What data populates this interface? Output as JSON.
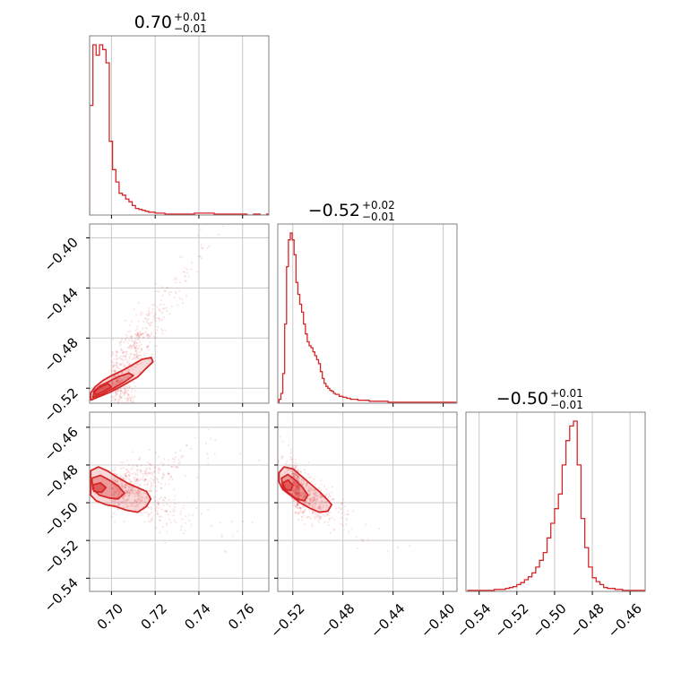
{
  "colors": {
    "accent": "#d62728",
    "grid": "#c8c8c8",
    "frame": "#808080",
    "background": "#ffffff"
  },
  "chart_data": {
    "type": "corner",
    "grid": true,
    "params": [
      {
        "range": [
          0.69,
          0.772
        ],
        "ticks": [
          {
            "v": 0.7,
            "label": "0.70"
          },
          {
            "v": 0.72,
            "label": "0.72"
          },
          {
            "v": 0.74,
            "label": "0.74"
          },
          {
            "v": 0.76,
            "label": "0.76"
          }
        ]
      },
      {
        "range": [
          -0.532,
          -0.389
        ],
        "ticks": [
          {
            "v": -0.52,
            "label": "−0.52"
          },
          {
            "v": -0.48,
            "label": "−0.48"
          },
          {
            "v": -0.44,
            "label": "−0.44"
          },
          {
            "v": -0.4,
            "label": "−0.40"
          }
        ]
      },
      {
        "range": [
          -0.547,
          -0.452
        ],
        "ticks": [
          {
            "v": -0.54,
            "label": "−0.54"
          },
          {
            "v": -0.52,
            "label": "−0.52"
          },
          {
            "v": -0.5,
            "label": "−0.50"
          },
          {
            "v": -0.48,
            "label": "−0.48"
          },
          {
            "v": -0.46,
            "label": "−0.46"
          }
        ]
      }
    ],
    "titles": [
      {
        "main": "0.70",
        "sup": "+0.01",
        "sub": "−0.01"
      },
      {
        "main": "−0.52",
        "sup": "+0.02",
        "sub": "−0.01"
      },
      {
        "main": "−0.50",
        "sup": "+0.01",
        "sub": "−0.01"
      }
    ],
    "histograms": [
      {
        "x": [
          0.69,
          0.6915,
          0.693,
          0.6945,
          0.696,
          0.6975,
          0.699,
          0.7005,
          0.702,
          0.7035,
          0.705,
          0.7065,
          0.708,
          0.7095,
          0.711,
          0.7125,
          0.714,
          0.7155,
          0.717,
          0.7185,
          0.72,
          0.7215,
          0.723,
          0.7245,
          0.726,
          0.7275,
          0.729,
          0.7305,
          0.732,
          0.7335,
          0.735,
          0.738,
          0.741,
          0.744,
          0.747,
          0.75,
          0.753,
          0.756,
          0.759,
          0.762,
          0.765,
          0.768,
          0.771
        ],
        "counts": [
          116,
          180,
          169,
          180,
          175,
          161,
          78,
          48,
          35,
          23,
          21,
          17,
          14,
          10,
          7,
          6,
          5,
          4,
          3,
          3,
          2,
          2,
          2,
          1,
          1,
          1,
          1,
          1,
          1,
          1,
          1,
          2,
          2,
          2,
          1,
          1,
          1,
          1,
          1,
          0,
          1,
          0,
          1
        ]
      },
      {
        "x": [
          -0.531,
          -0.5295,
          -0.528,
          -0.5265,
          -0.525,
          -0.5235,
          -0.522,
          -0.5205,
          -0.519,
          -0.5175,
          -0.516,
          -0.5145,
          -0.513,
          -0.5115,
          -0.51,
          -0.5085,
          -0.507,
          -0.5055,
          -0.504,
          -0.5025,
          -0.501,
          -0.4995,
          -0.498,
          -0.4965,
          -0.495,
          -0.4935,
          -0.492,
          -0.4905,
          -0.489,
          -0.4875,
          -0.486,
          -0.483,
          -0.48,
          -0.477,
          -0.474,
          -0.471,
          -0.468,
          -0.465,
          -0.462,
          -0.459,
          -0.456,
          -0.453,
          -0.45,
          -0.447,
          -0.444,
          -0.441,
          -0.438,
          -0.435,
          -0.432,
          -0.429,
          -0.426,
          -0.423,
          -0.42,
          -0.417,
          -0.414,
          -0.411,
          -0.408,
          -0.405,
          -0.402,
          -0.399,
          -0.396,
          -0.393
        ],
        "counts": [
          4,
          10,
          30,
          80,
          138,
          165,
          172,
          165,
          150,
          122,
          110,
          100,
          92,
          80,
          70,
          62,
          58,
          56,
          52,
          48,
          44,
          40,
          32,
          25,
          20,
          17,
          15,
          13,
          12,
          10,
          9,
          7,
          6,
          5,
          4,
          4,
          3,
          3,
          3,
          2,
          2,
          2,
          2,
          2,
          1,
          1,
          1,
          1,
          1,
          1,
          1,
          1,
          1,
          1,
          1,
          1,
          1,
          1,
          1,
          1,
          1,
          1
        ]
      },
      {
        "x": [
          -0.546,
          -0.544,
          -0.542,
          -0.54,
          -0.538,
          -0.536,
          -0.534,
          -0.532,
          -0.53,
          -0.528,
          -0.526,
          -0.524,
          -0.522,
          -0.52,
          -0.518,
          -0.516,
          -0.514,
          -0.512,
          -0.51,
          -0.508,
          -0.506,
          -0.504,
          -0.502,
          -0.5,
          -0.498,
          -0.496,
          -0.494,
          -0.492,
          -0.49,
          -0.488,
          -0.486,
          -0.484,
          -0.482,
          -0.48,
          -0.478,
          -0.476,
          -0.474,
          -0.472,
          -0.47,
          -0.468,
          -0.466,
          -0.464,
          -0.462,
          -0.46,
          -0.458,
          -0.456,
          -0.454
        ],
        "counts": [
          1,
          1,
          1,
          1,
          1,
          1,
          1,
          2,
          2,
          2,
          3,
          4,
          5,
          7,
          9,
          12,
          15,
          19,
          25,
          32,
          40,
          55,
          70,
          85,
          100,
          130,
          155,
          170,
          175,
          130,
          75,
          45,
          25,
          14,
          10,
          7,
          4,
          3,
          3,
          2,
          2,
          1,
          1,
          1,
          1,
          1,
          1
        ]
      }
    ],
    "pairs": [
      {
        "i": 1,
        "j": 0,
        "contours": [
          [
            [
              0.6905,
              -0.5295
            ],
            [
              0.694,
              -0.527
            ],
            [
              0.699,
              -0.5235
            ],
            [
              0.704,
              -0.519
            ],
            [
              0.708,
              -0.515
            ],
            [
              0.712,
              -0.511
            ],
            [
              0.716,
              -0.504
            ],
            [
              0.719,
              -0.499
            ],
            [
              0.7182,
              -0.4955
            ],
            [
              0.714,
              -0.497
            ],
            [
              0.71,
              -0.501
            ],
            [
              0.705,
              -0.506
            ],
            [
              0.7,
              -0.51
            ],
            [
              0.696,
              -0.514
            ],
            [
              0.6925,
              -0.519
            ],
            [
              0.6905,
              -0.524
            ]
          ],
          [
            [
              0.6915,
              -0.5275
            ],
            [
              0.696,
              -0.5245
            ],
            [
              0.701,
              -0.52
            ],
            [
              0.706,
              -0.515
            ],
            [
              0.71,
              -0.51
            ],
            [
              0.708,
              -0.508
            ],
            [
              0.703,
              -0.511
            ],
            [
              0.6985,
              -0.515
            ],
            [
              0.6945,
              -0.5185
            ],
            [
              0.692,
              -0.5225
            ]
          ],
          [
            [
              0.6925,
              -0.5255
            ],
            [
              0.6965,
              -0.5225
            ],
            [
              0.7,
              -0.519
            ],
            [
              0.6985,
              -0.5165
            ],
            [
              0.695,
              -0.519
            ],
            [
              0.6925,
              -0.5225
            ]
          ]
        ],
        "scatter": {
          "n": 900,
          "center": [
            0.7,
            -0.515
          ],
          "spread": [
            0.014,
            0.022
          ],
          "slope": 1.6
        }
      },
      {
        "i": 2,
        "j": 0,
        "contours": [
          [
            [
              0.6905,
              -0.483
            ],
            [
              0.694,
              -0.481
            ],
            [
              0.698,
              -0.483
            ],
            [
              0.702,
              -0.486
            ],
            [
              0.705,
              -0.488
            ],
            [
              0.708,
              -0.49
            ],
            [
              0.712,
              -0.492
            ],
            [
              0.716,
              -0.494
            ],
            [
              0.718,
              -0.498
            ],
            [
              0.716,
              -0.502
            ],
            [
              0.712,
              -0.505
            ],
            [
              0.707,
              -0.504
            ],
            [
              0.702,
              -0.502
            ],
            [
              0.6975,
              -0.501
            ],
            [
              0.693,
              -0.499
            ],
            [
              0.6905,
              -0.496
            ]
          ],
          [
            [
              0.691,
              -0.487
            ],
            [
              0.695,
              -0.4855
            ],
            [
              0.699,
              -0.488
            ],
            [
              0.703,
              -0.491
            ],
            [
              0.706,
              -0.495
            ],
            [
              0.703,
              -0.498
            ],
            [
              0.699,
              -0.4975
            ],
            [
              0.6945,
              -0.496
            ],
            [
              0.6915,
              -0.493
            ]
          ],
          [
            [
              0.6915,
              -0.4905
            ],
            [
              0.695,
              -0.4895
            ],
            [
              0.6975,
              -0.492
            ],
            [
              0.6955,
              -0.4945
            ],
            [
              0.692,
              -0.494
            ]
          ]
        ],
        "scatter": {
          "n": 600,
          "center": [
            0.7,
            -0.493
          ],
          "spread": [
            0.016,
            0.012
          ],
          "slope": -0.4
        }
      },
      {
        "i": 2,
        "j": 1,
        "contours": [
          [
            [
              -0.531,
              -0.484
            ],
            [
              -0.527,
              -0.481
            ],
            [
              -0.52,
              -0.482
            ],
            [
              -0.513,
              -0.486
            ],
            [
              -0.506,
              -0.49
            ],
            [
              -0.499,
              -0.494
            ],
            [
              -0.493,
              -0.498
            ],
            [
              -0.489,
              -0.501
            ],
            [
              -0.492,
              -0.5045
            ],
            [
              -0.499,
              -0.505
            ],
            [
              -0.506,
              -0.503
            ],
            [
              -0.514,
              -0.5
            ],
            [
              -0.522,
              -0.496
            ],
            [
              -0.528,
              -0.493
            ],
            [
              -0.531,
              -0.489
            ]
          ],
          [
            [
              -0.529,
              -0.487
            ],
            [
              -0.524,
              -0.485
            ],
            [
              -0.518,
              -0.488
            ],
            [
              -0.512,
              -0.492
            ],
            [
              -0.508,
              -0.496
            ],
            [
              -0.511,
              -0.499
            ],
            [
              -0.517,
              -0.498
            ],
            [
              -0.523,
              -0.495
            ],
            [
              -0.528,
              -0.492
            ]
          ],
          [
            [
              -0.528,
              -0.4895
            ],
            [
              -0.524,
              -0.488
            ],
            [
              -0.52,
              -0.4905
            ],
            [
              -0.5215,
              -0.4935
            ],
            [
              -0.526,
              -0.493
            ]
          ]
        ],
        "scatter": {
          "n": 700,
          "center": [
            -0.515,
            -0.495
          ],
          "spread": [
            0.014,
            0.011
          ],
          "slope": -0.55
        }
      }
    ]
  }
}
